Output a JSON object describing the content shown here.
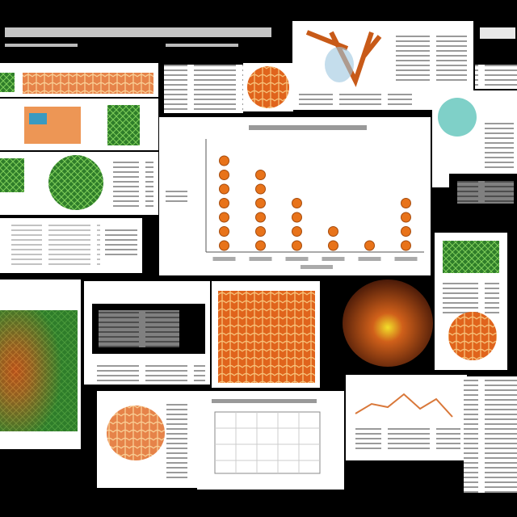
{
  "chart_data": {
    "type": "dotstack",
    "categories": [
      null,
      null,
      null,
      null,
      null,
      null
    ],
    "values": [
      7,
      6,
      4,
      2,
      1,
      4
    ],
    "color": "#e8731a",
    "ylim": [
      0,
      8
    ]
  }
}
